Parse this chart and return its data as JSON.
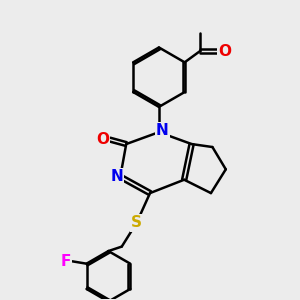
{
  "background_color": "#ececec",
  "bond_color": "#000000",
  "bond_width": 1.8,
  "atom_colors": {
    "N": "#0000ee",
    "O": "#ee0000",
    "S": "#ccaa00",
    "F": "#ff00ff",
    "C": "#000000"
  },
  "font_size_atom": 10
}
